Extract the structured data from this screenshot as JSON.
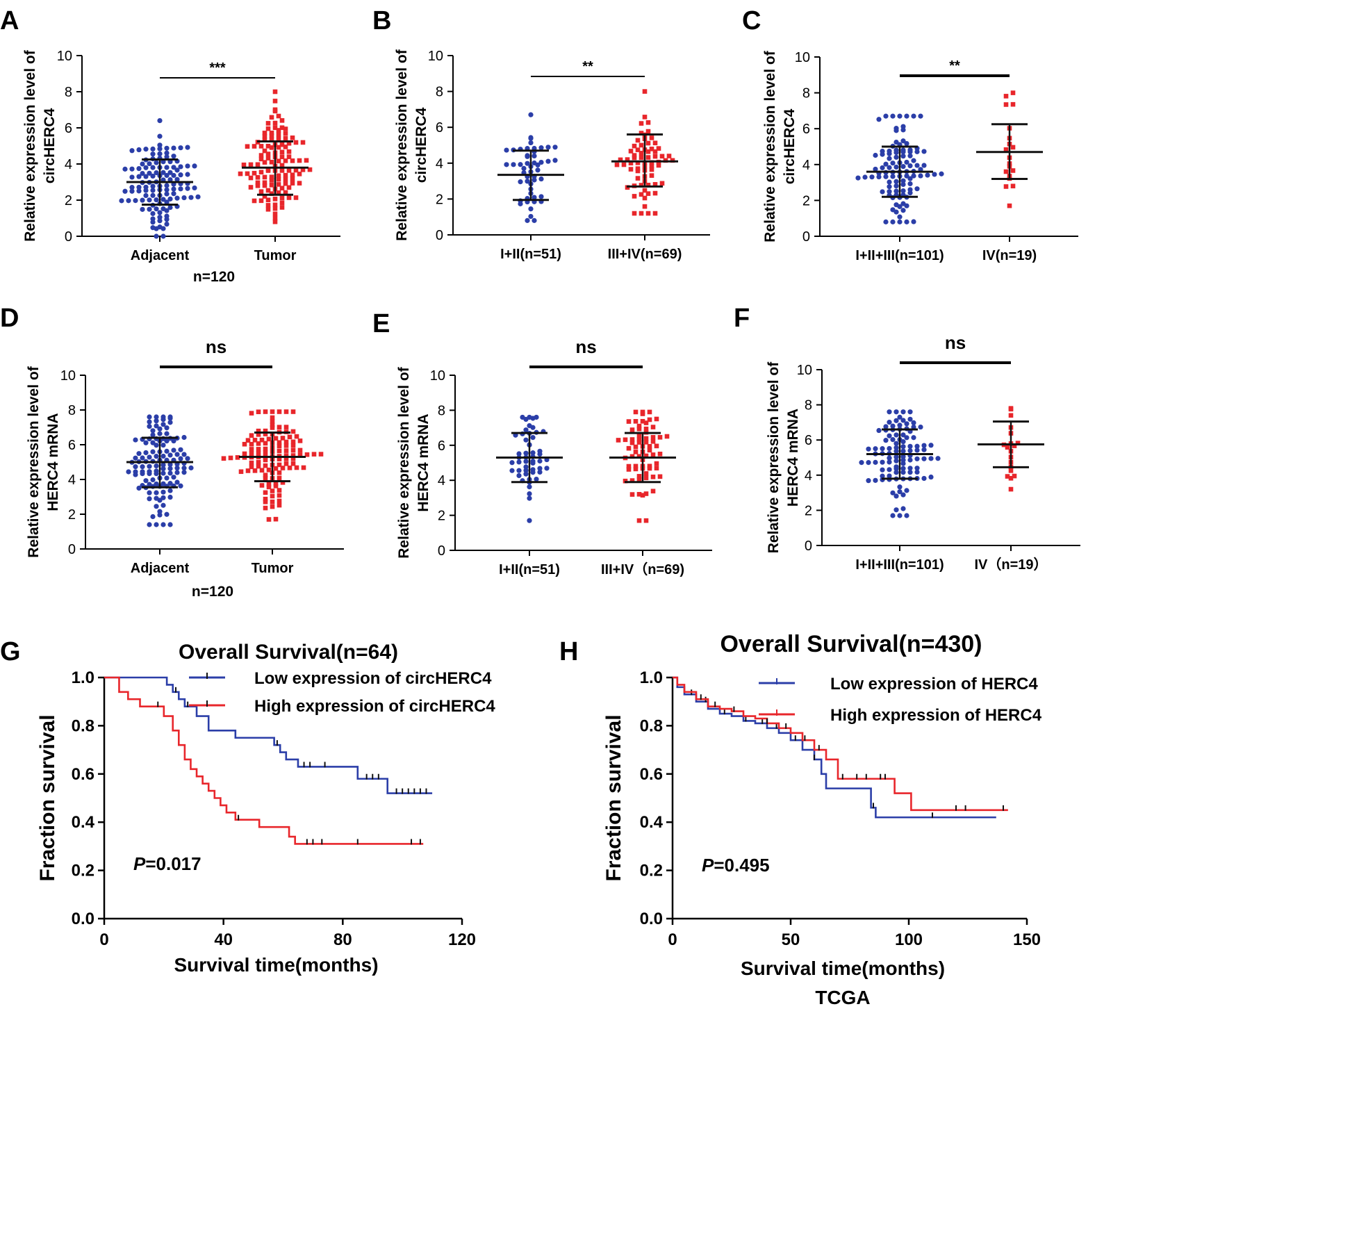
{
  "colors": {
    "blue": "#2b3ea8",
    "red": "#e8262b",
    "black": "#111111"
  },
  "chart_data": [
    {
      "panel": "A",
      "type": "scatter",
      "ylabel": [
        "Relative expression level of",
        "circHERC4"
      ],
      "ylim": [
        0,
        10
      ],
      "yticks": [
        0,
        2,
        4,
        6,
        8,
        10
      ],
      "categories": [
        "Adjacent",
        "Tumor"
      ],
      "note": "n=120",
      "significance": "***",
      "series": [
        {
          "category": "Adjacent",
          "color": "blue",
          "n": 120,
          "mean": 3.0,
          "sd_low": 1.75,
          "sd_high": 4.25,
          "min": 0.0,
          "max": 6.4
        },
        {
          "category": "Tumor",
          "color": "red",
          "n": 120,
          "mean": 3.8,
          "sd_low": 2.3,
          "sd_high": 5.25,
          "min": 0.8,
          "max": 8.0
        }
      ]
    },
    {
      "panel": "B",
      "type": "scatter",
      "ylabel": [
        "Relative expression level of",
        "circHERC4"
      ],
      "ylim": [
        0,
        10
      ],
      "yticks": [
        0,
        2,
        4,
        6,
        8,
        10
      ],
      "categories": [
        "I+II(n=51)",
        "III+IV(n=69)"
      ],
      "note": "",
      "significance": "**",
      "series": [
        {
          "category": "I+II(n=51)",
          "color": "blue",
          "n": 51,
          "mean": 3.35,
          "sd_low": 1.95,
          "sd_high": 4.7,
          "min": 0.8,
          "max": 6.7
        },
        {
          "category": "III+IV(n=69)",
          "color": "red",
          "n": 69,
          "mean": 4.1,
          "sd_low": 2.7,
          "sd_high": 5.6,
          "min": 1.2,
          "max": 8.0
        }
      ]
    },
    {
      "panel": "C",
      "type": "scatter",
      "ylabel": [
        "Relative expression level of",
        "circHERC4"
      ],
      "ylim": [
        0,
        10
      ],
      "yticks": [
        0,
        2,
        4,
        6,
        8,
        10
      ],
      "categories": [
        "I+II+III(n=101)",
        "IV(n=19)"
      ],
      "note": "",
      "significance": "**",
      "series": [
        {
          "category": "I+II+III(n=101)",
          "color": "blue",
          "n": 101,
          "mean": 3.6,
          "sd_low": 2.2,
          "sd_high": 5.0,
          "min": 0.8,
          "max": 6.7
        },
        {
          "category": "IV(n=19)",
          "color": "red",
          "n": 19,
          "mean": 4.7,
          "sd_low": 3.2,
          "sd_high": 6.25,
          "min": 1.7,
          "max": 8.0
        }
      ]
    },
    {
      "panel": "D",
      "type": "scatter",
      "ylabel": [
        "Relative expression level of",
        "HERC4 mRNA"
      ],
      "ylim": [
        0,
        10
      ],
      "yticks": [
        0,
        2,
        4,
        6,
        8,
        10
      ],
      "categories": [
        "Adjacent",
        "Tumor"
      ],
      "note": "n=120",
      "significance": "ns",
      "series": [
        {
          "category": "Adjacent",
          "color": "blue",
          "n": 120,
          "mean": 5.0,
          "sd_low": 3.55,
          "sd_high": 6.4,
          "min": 1.4,
          "max": 7.6
        },
        {
          "category": "Tumor",
          "color": "red",
          "n": 120,
          "mean": 5.3,
          "sd_low": 3.9,
          "sd_high": 6.7,
          "min": 1.7,
          "max": 7.9
        }
      ]
    },
    {
      "panel": "E",
      "type": "scatter",
      "ylabel": [
        "Relative expression level of",
        "HERC4 mRNA"
      ],
      "ylim": [
        0,
        10
      ],
      "yticks": [
        0,
        2,
        4,
        6,
        8,
        10
      ],
      "categories": [
        "I+II(n=51)",
        "III+IV（n=69)"
      ],
      "note": "",
      "significance": "ns",
      "series": [
        {
          "category": "I+II(n=51)",
          "color": "blue",
          "n": 51,
          "mean": 5.3,
          "sd_low": 3.9,
          "sd_high": 6.7,
          "min": 1.7,
          "max": 7.6
        },
        {
          "category": "III+IV（n=69)",
          "color": "red",
          "n": 69,
          "mean": 5.3,
          "sd_low": 3.9,
          "sd_high": 6.7,
          "min": 1.7,
          "max": 7.9
        }
      ]
    },
    {
      "panel": "F",
      "type": "scatter",
      "ylabel": [
        "Relative expression level of",
        "HERC4 mRNA"
      ],
      "ylim": [
        0,
        10
      ],
      "yticks": [
        0,
        2,
        4,
        6,
        8,
        10
      ],
      "categories": [
        "I+II+III(n=101)",
        "IV（n=19）"
      ],
      "note": "",
      "significance": "ns",
      "series": [
        {
          "category": "I+II+III(n=101)",
          "color": "blue",
          "n": 101,
          "mean": 5.2,
          "sd_low": 3.8,
          "sd_high": 6.6,
          "min": 1.7,
          "max": 7.6
        },
        {
          "category": "IV（n=19）",
          "color": "red",
          "n": 19,
          "mean": 5.75,
          "sd_low": 4.45,
          "sd_high": 7.05,
          "min": 3.2,
          "max": 7.8
        }
      ]
    },
    {
      "panel": "G",
      "type": "line",
      "title": "Overall Survival(n=64)",
      "xlabel": "Survival time(months)",
      "ylabel": "Fraction survival",
      "xlim": [
        0,
        120
      ],
      "xticks": [
        0,
        40,
        80,
        120
      ],
      "ylim": [
        0,
        1
      ],
      "yticks": [
        0.0,
        0.2,
        0.4,
        0.6,
        0.8,
        1.0
      ],
      "pvalue": {
        "prefix": "P",
        "value": "=0.017"
      },
      "legend_position": "top-right",
      "series": [
        {
          "name": "Low expression of circHERC4",
          "color": "blue",
          "x": [
            0,
            17,
            21,
            23,
            25,
            27,
            31,
            35,
            44,
            57,
            59,
            61,
            65,
            85,
            95,
            110
          ],
          "y": [
            1.0,
            1.0,
            0.97,
            0.94,
            0.91,
            0.88,
            0.84,
            0.78,
            0.75,
            0.72,
            0.69,
            0.66,
            0.63,
            0.58,
            0.52,
            0.52
          ],
          "censor_x": [
            24,
            28,
            58,
            67,
            69,
            74,
            88,
            90,
            92,
            98,
            100,
            102,
            104,
            106,
            108
          ]
        },
        {
          "name": "High expression of circHERC4",
          "color": "red",
          "x": [
            0,
            5,
            8,
            12,
            20,
            23,
            25,
            27,
            29,
            31,
            33,
            35,
            37,
            39,
            41,
            44,
            52,
            62,
            64,
            66,
            107
          ],
          "y": [
            1.0,
            0.94,
            0.91,
            0.88,
            0.84,
            0.78,
            0.72,
            0.66,
            0.62,
            0.59,
            0.56,
            0.53,
            0.5,
            0.47,
            0.44,
            0.41,
            0.38,
            0.34,
            0.31,
            0.31,
            0.31
          ],
          "censor_x": [
            18,
            45,
            68,
            70,
            73,
            85,
            103,
            106
          ]
        }
      ]
    },
    {
      "panel": "H",
      "type": "line",
      "title": "Overall Survival(n=430)",
      "xlabel": "Survival time(months)",
      "subxlabel": "TCGA",
      "ylabel": "Fraction survival",
      "xlim": [
        0,
        150
      ],
      "xticks": [
        0,
        50,
        100,
        150
      ],
      "ylim": [
        0,
        1
      ],
      "yticks": [
        0.0,
        0.2,
        0.4,
        0.6,
        0.8,
        1.0
      ],
      "pvalue": {
        "prefix": "P",
        "value": "=0.495"
      },
      "legend_position": "top-right",
      "series": [
        {
          "name": "Low expression of HERC4",
          "color": "blue",
          "x": [
            0,
            2,
            5,
            10,
            15,
            20,
            25,
            30,
            35,
            40,
            45,
            50,
            55,
            60,
            63,
            65,
            74,
            84,
            86,
            137
          ],
          "y": [
            1.0,
            0.96,
            0.93,
            0.9,
            0.87,
            0.85,
            0.84,
            0.82,
            0.81,
            0.79,
            0.77,
            0.74,
            0.7,
            0.66,
            0.6,
            0.54,
            0.54,
            0.46,
            0.42,
            0.42
          ],
          "censor_x": [
            8,
            14,
            22,
            31,
            38,
            44,
            52,
            60,
            85,
            110
          ]
        },
        {
          "name": "High expression of HERC4",
          "color": "red",
          "x": [
            0,
            2,
            5,
            10,
            15,
            20,
            25,
            30,
            35,
            40,
            45,
            50,
            55,
            60,
            65,
            70,
            94,
            101,
            142
          ],
          "y": [
            1.0,
            0.97,
            0.94,
            0.91,
            0.88,
            0.87,
            0.86,
            0.84,
            0.83,
            0.81,
            0.79,
            0.77,
            0.74,
            0.7,
            0.66,
            0.58,
            0.52,
            0.45,
            0.45
          ],
          "censor_x": [
            12,
            18,
            26,
            40,
            48,
            56,
            62,
            72,
            78,
            82,
            88,
            90,
            120,
            124,
            140
          ]
        }
      ]
    }
  ]
}
